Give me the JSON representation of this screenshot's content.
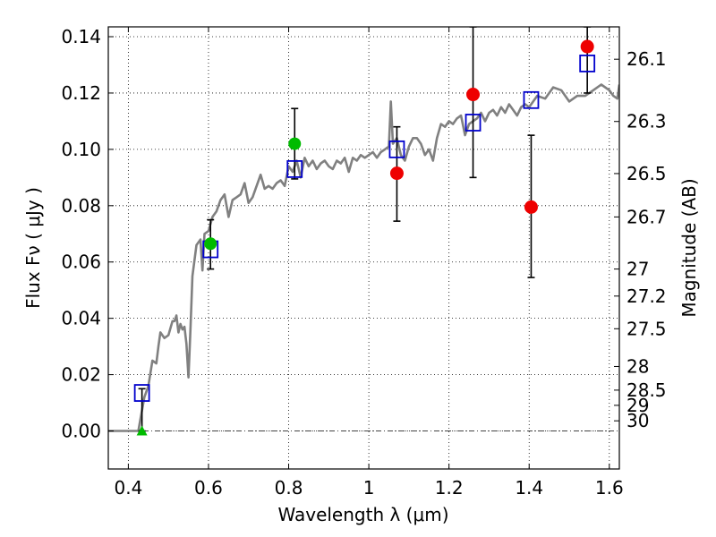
{
  "chart_data": {
    "type": "scatter",
    "title": "",
    "xlabel": "Wavelength  λ (μm)",
    "ylabel": "Flux  Fν  ( μJy )",
    "y2label": "Magnitude (AB)",
    "xlim": [
      0.35,
      1.625
    ],
    "ylim": [
      -0.0135,
      0.1435
    ],
    "grid": true,
    "x_ticks": [
      0.4,
      0.6,
      0.8,
      1.0,
      1.2,
      1.4,
      1.6
    ],
    "x_tick_labels": [
      "0.4",
      "0.6",
      "0.8",
      "1",
      "1.2",
      "1.4",
      "1.6"
    ],
    "y_ticks": [
      0.0,
      0.02,
      0.04,
      0.06,
      0.08,
      0.1,
      0.12,
      0.14
    ],
    "y_tick_labels": [
      "0.00",
      "0.02",
      "0.04",
      "0.06",
      "0.08",
      "0.10",
      "0.12",
      "0.14"
    ],
    "y2_ticks": [
      {
        "label": "26.1",
        "flux": 0.132
      },
      {
        "label": "26.3",
        "flux": 0.1099
      },
      {
        "label": "26.5",
        "flux": 0.0914
      },
      {
        "label": "26.7",
        "flux": 0.076
      },
      {
        "label": "27",
        "flux": 0.0575
      },
      {
        "label": "27.2",
        "flux": 0.0479
      },
      {
        "label": "27.5",
        "flux": 0.0363
      },
      {
        "label": "28",
        "flux": 0.0229
      },
      {
        "label": "28.5",
        "flux": 0.0145
      },
      {
        "label": "29",
        "flux": 0.0091
      },
      {
        "label": "30",
        "flux": 0.0036
      }
    ],
    "colors": {
      "model": "#808080",
      "model_photometry": "#0000cc",
      "green_points": "#00bb00",
      "red_points": "#ee0000",
      "error_bars": "#000000"
    },
    "model_sed": {
      "x": [
        0.35,
        0.425,
        0.43,
        0.44,
        0.45,
        0.46,
        0.47,
        0.475,
        0.48,
        0.49,
        0.5,
        0.51,
        0.515,
        0.52,
        0.525,
        0.53,
        0.535,
        0.54,
        0.545,
        0.55,
        0.555,
        0.56,
        0.57,
        0.58,
        0.585,
        0.59,
        0.6,
        0.61,
        0.62,
        0.63,
        0.64,
        0.65,
        0.66,
        0.67,
        0.68,
        0.69,
        0.7,
        0.71,
        0.72,
        0.73,
        0.74,
        0.75,
        0.76,
        0.77,
        0.78,
        0.79,
        0.8,
        0.81,
        0.82,
        0.83,
        0.84,
        0.85,
        0.86,
        0.87,
        0.88,
        0.89,
        0.9,
        0.91,
        0.92,
        0.93,
        0.94,
        0.95,
        0.96,
        0.97,
        0.98,
        0.99,
        1.0,
        1.01,
        1.02,
        1.03,
        1.04,
        1.05,
        1.055,
        1.06,
        1.07,
        1.08,
        1.09,
        1.1,
        1.11,
        1.12,
        1.13,
        1.14,
        1.15,
        1.16,
        1.17,
        1.18,
        1.19,
        1.2,
        1.21,
        1.22,
        1.23,
        1.24,
        1.25,
        1.26,
        1.27,
        1.28,
        1.29,
        1.3,
        1.31,
        1.32,
        1.33,
        1.34,
        1.35,
        1.36,
        1.37,
        1.38,
        1.39,
        1.4,
        1.42,
        1.44,
        1.46,
        1.48,
        1.5,
        1.52,
        1.54,
        1.56,
        1.58,
        1.6,
        1.61,
        1.62,
        1.625
      ],
      "y": [
        0.0,
        0.0,
        0.004,
        0.012,
        0.016,
        0.025,
        0.024,
        0.03,
        0.035,
        0.033,
        0.034,
        0.039,
        0.039,
        0.041,
        0.035,
        0.038,
        0.036,
        0.037,
        0.031,
        0.019,
        0.036,
        0.055,
        0.066,
        0.068,
        0.057,
        0.07,
        0.071,
        0.076,
        0.078,
        0.082,
        0.084,
        0.076,
        0.082,
        0.083,
        0.084,
        0.088,
        0.081,
        0.083,
        0.087,
        0.091,
        0.086,
        0.087,
        0.086,
        0.088,
        0.089,
        0.087,
        0.094,
        0.092,
        0.096,
        0.09,
        0.097,
        0.094,
        0.096,
        0.093,
        0.095,
        0.096,
        0.094,
        0.093,
        0.096,
        0.095,
        0.097,
        0.092,
        0.097,
        0.096,
        0.098,
        0.097,
        0.098,
        0.099,
        0.097,
        0.099,
        0.1,
        0.101,
        0.117,
        0.102,
        0.104,
        0.098,
        0.096,
        0.101,
        0.104,
        0.104,
        0.102,
        0.098,
        0.1,
        0.096,
        0.104,
        0.109,
        0.108,
        0.11,
        0.109,
        0.111,
        0.112,
        0.105,
        0.109,
        0.11,
        0.111,
        0.113,
        0.11,
        0.113,
        0.114,
        0.112,
        0.115,
        0.113,
        0.116,
        0.114,
        0.112,
        0.115,
        0.116,
        0.115,
        0.119,
        0.118,
        0.122,
        0.121,
        0.117,
        0.119,
        0.119,
        0.121,
        0.123,
        0.121,
        0.119,
        0.118,
        0.123
      ]
    },
    "series": [
      {
        "marker": "open-square",
        "x": [
          0.434,
          0.605,
          0.815,
          1.07,
          1.26,
          1.405,
          1.545
        ],
        "y": [
          0.0135,
          0.0645,
          0.093,
          0.1,
          0.1095,
          0.1175,
          0.1305
        ]
      },
      {
        "marker": "circle",
        "x": [
          0.605,
          0.815
        ],
        "y": [
          0.0665,
          0.102
        ],
        "yerr": [
          [
            0.0575,
            0.075
          ],
          [
            0.0895,
            0.1145
          ]
        ]
      },
      {
        "marker": "triangle",
        "x": [
          0.434
        ],
        "y": [
          0.0
        ],
        "yerr": [
          [
            0.0,
            0.015
          ]
        ]
      },
      {
        "marker": "circle",
        "x": [
          1.07,
          1.26,
          1.405,
          1.545
        ],
        "y": [
          0.0915,
          0.1195,
          0.0795,
          0.1365
        ],
        "yerr": [
          [
            0.0745,
            0.108
          ],
          [
            0.09,
            0.1435
          ],
          [
            0.0545,
            0.105
          ],
          [
            0.12,
            0.1435
          ]
        ]
      }
    ]
  }
}
